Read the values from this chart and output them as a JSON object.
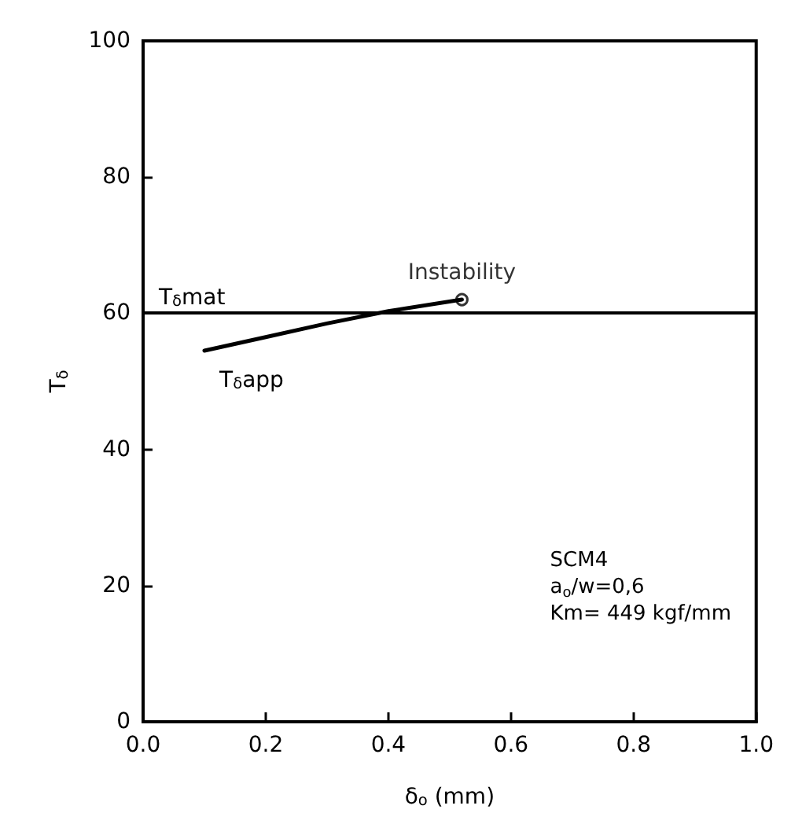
{
  "chart_data": {
    "type": "line",
    "xlabel": "δ$_{o}$ (mm)",
    "ylabel": "T$_{δ}$",
    "series": [
      {
        "name": "T$_{δ}$app",
        "color": "#000000",
        "x": [
          0.1,
          0.2,
          0.3,
          0.4,
          0.52
        ],
        "values": [
          54.5,
          56.5,
          58.5,
          60.3,
          62
        ]
      }
    ],
    "ref_lines": [
      {
        "axis": "y",
        "value": 60,
        "label": "T$_{δ}$mat",
        "color": "#000000",
        "line_style": "solid"
      }
    ],
    "annotations": [
      {
        "text": "Instability",
        "x": 0.52,
        "y": 62
      },
      "SCM4",
      "a$_{o}$/w=0,6",
      "Km= 449 kgf/mm"
    ],
    "xlim": [
      0,
      1.0
    ],
    "xticks": [
      {
        "value": 0,
        "label": "0.0"
      },
      0.2,
      0.4,
      0.6,
      0.8,
      {
        "value": 1.0,
        "label": "1.0"
      }
    ],
    "ylim": [
      0,
      100
    ],
    "yticks": [
      0,
      20,
      40,
      60,
      80,
      100
    ],
    "grid": false,
    "marker": "none",
    "line_style": "solid"
  }
}
